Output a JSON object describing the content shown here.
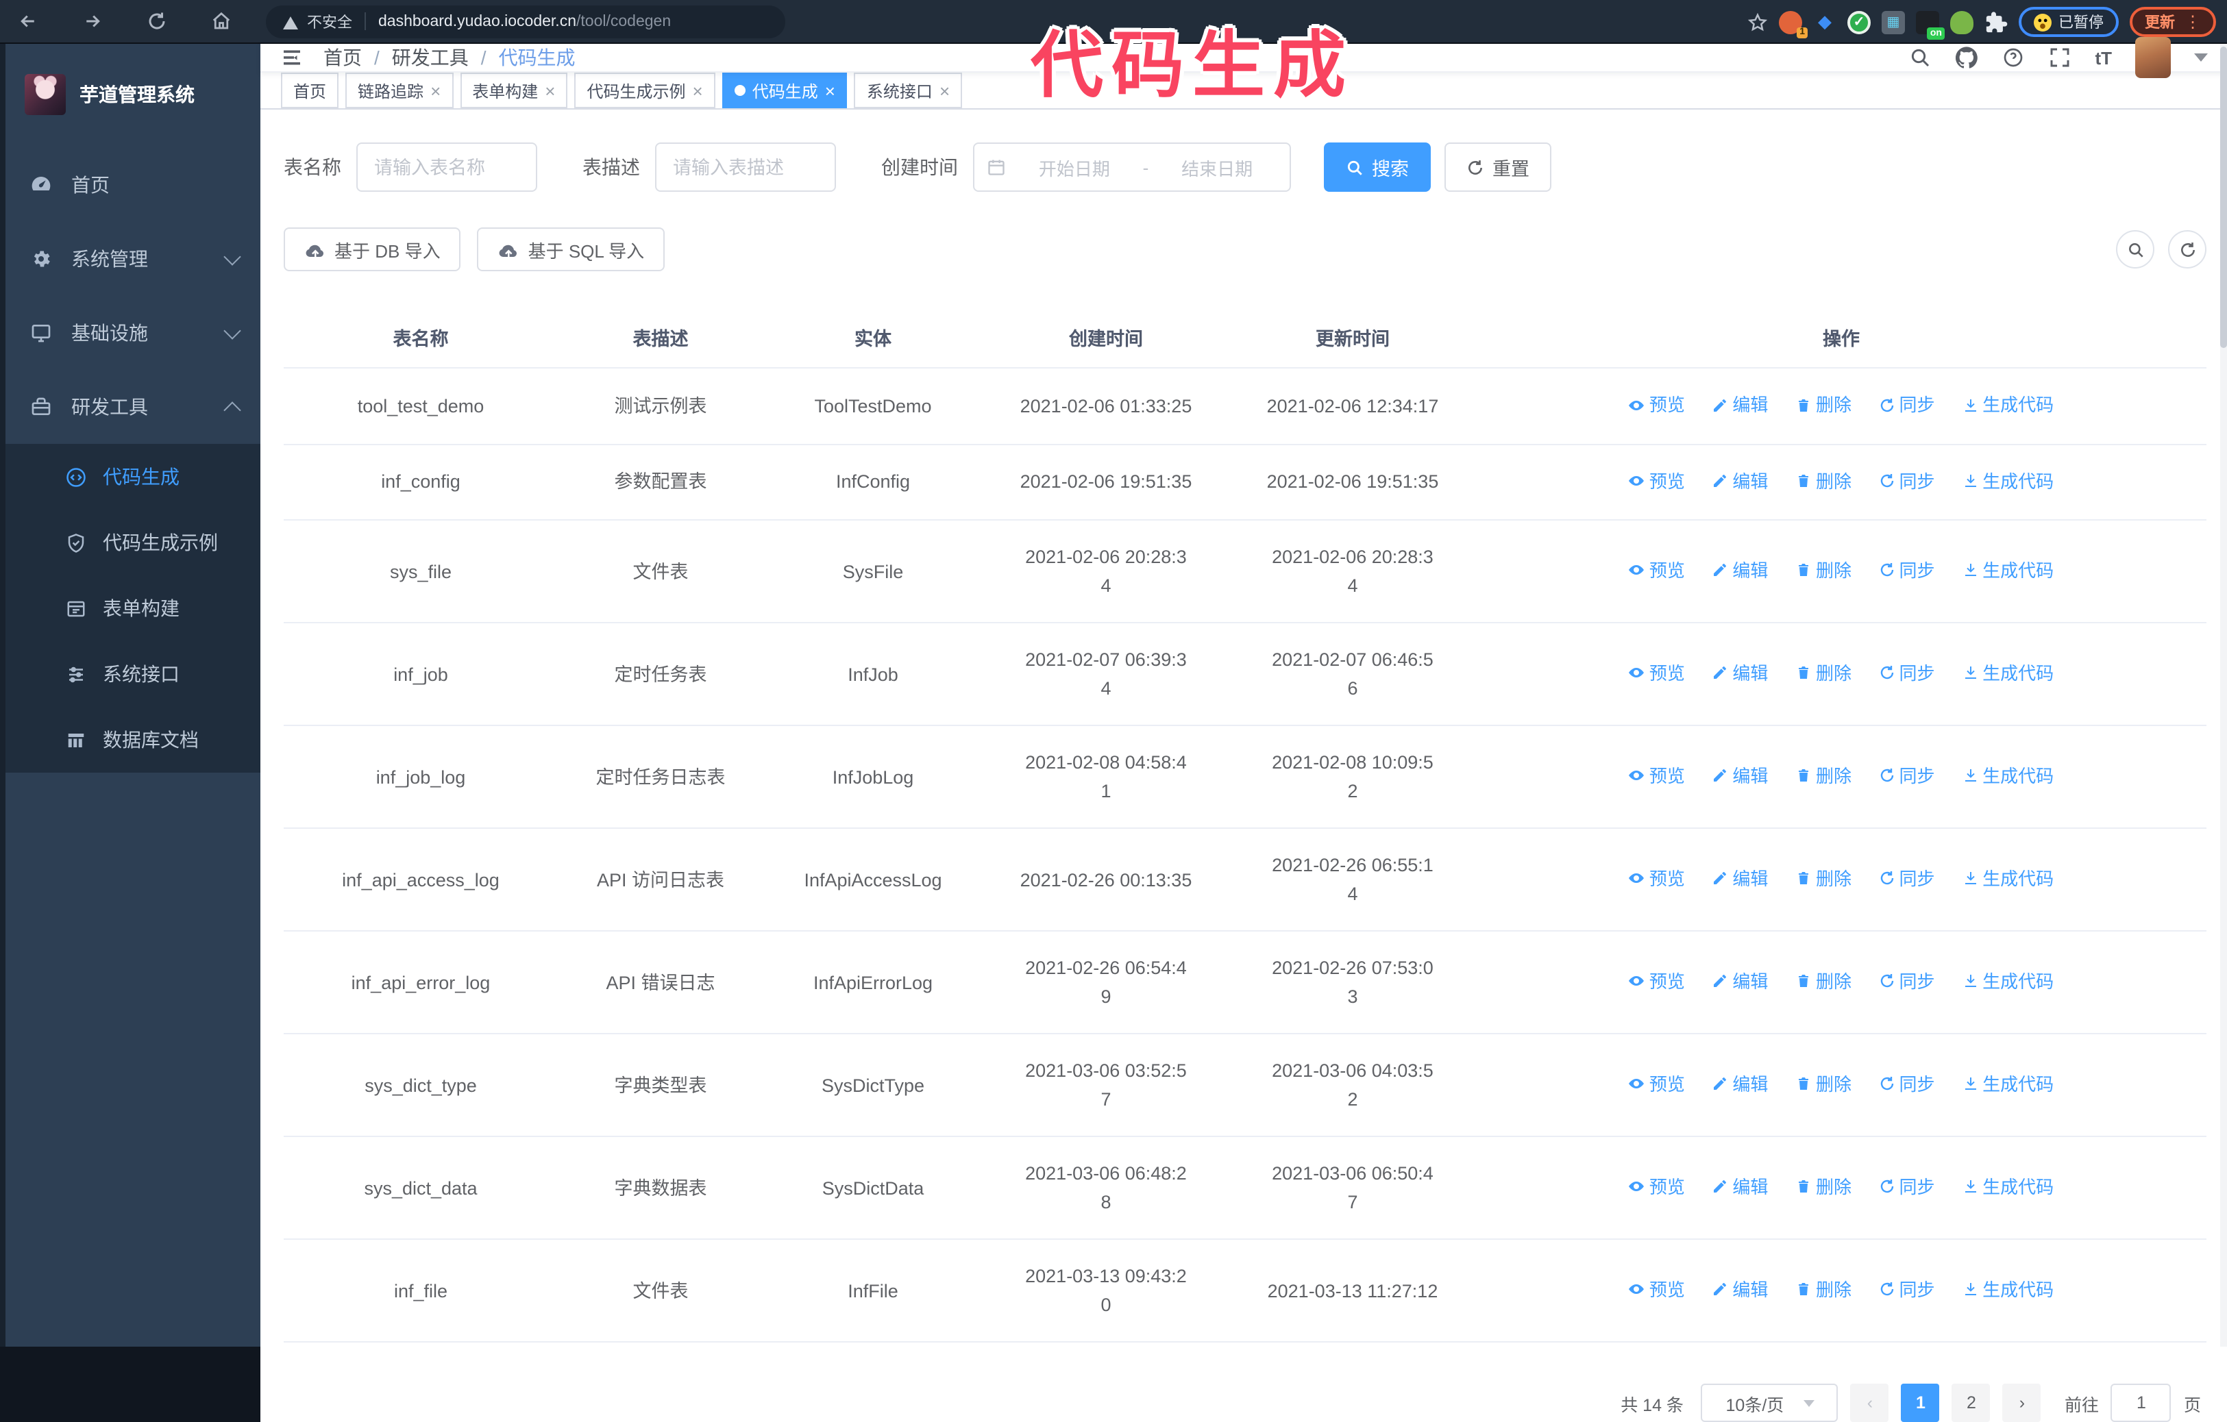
{
  "browser": {
    "security_label": "不安全",
    "url_host": "dashboard.yudao.iocoder.cn",
    "url_path": "/tool/codegen",
    "ext_badge_1": "1",
    "ext_badge_on": "on",
    "paused_badge": "已暂停",
    "update_button": "更新",
    "vdots": "⋮"
  },
  "annotation": {
    "text": "代码生成"
  },
  "sidebar": {
    "title": "芋道管理系统",
    "items": [
      {
        "label": "首页"
      },
      {
        "label": "系统管理"
      },
      {
        "label": "基础设施"
      },
      {
        "label": "研发工具"
      }
    ],
    "subitems": [
      {
        "label": "代码生成"
      },
      {
        "label": "代码生成示例"
      },
      {
        "label": "表单构建"
      },
      {
        "label": "系统接口"
      },
      {
        "label": "数据库文档"
      }
    ]
  },
  "header": {
    "breadcrumb": [
      "首页",
      "研发工具",
      "代码生成"
    ],
    "separator": "/",
    "font_size_icon": "tT"
  },
  "tabs": [
    {
      "label": "首页",
      "closable": false,
      "active": false
    },
    {
      "label": "链路追踪",
      "closable": true,
      "active": false
    },
    {
      "label": "表单构建",
      "closable": true,
      "active": false
    },
    {
      "label": "代码生成示例",
      "closable": true,
      "active": false
    },
    {
      "label": "代码生成",
      "closable": true,
      "active": true
    },
    {
      "label": "系统接口",
      "closable": true,
      "active": false
    }
  ],
  "filters": {
    "name_label": "表名称",
    "name_placeholder": "请输入表名称",
    "desc_label": "表描述",
    "desc_placeholder": "请输入表描述",
    "time_label": "创建时间",
    "start_placeholder": "开始日期",
    "range_separator": "-",
    "end_placeholder": "结束日期",
    "search_label": "搜索",
    "reset_label": "重置"
  },
  "toolbar": {
    "db_import": "基于 DB 导入",
    "sql_import": "基于 SQL 导入"
  },
  "table": {
    "columns": [
      "表名称",
      "表描述",
      "实体",
      "创建时间",
      "更新时间",
      "操作"
    ],
    "actions": [
      "预览",
      "编辑",
      "删除",
      "同步",
      "生成代码"
    ],
    "rows": [
      {
        "name": "tool_test_demo",
        "desc": "测试示例表",
        "entity": "ToolTestDemo",
        "created": "2021-02-06 01:33:25",
        "updated": "2021-02-06 12:34:17"
      },
      {
        "name": "inf_config",
        "desc": "参数配置表",
        "entity": "InfConfig",
        "created": "2021-02-06 19:51:35",
        "updated": "2021-02-06 19:51:35"
      },
      {
        "name": "sys_file",
        "desc": "文件表",
        "entity": "SysFile",
        "created": "2021-02-06 20:28:3\n4",
        "updated": "2021-02-06 20:28:3\n4"
      },
      {
        "name": "inf_job",
        "desc": "定时任务表",
        "entity": "InfJob",
        "created": "2021-02-07 06:39:3\n4",
        "updated": "2021-02-07 06:46:5\n6"
      },
      {
        "name": "inf_job_log",
        "desc": "定时任务日志表",
        "entity": "InfJobLog",
        "created": "2021-02-08 04:58:4\n1",
        "updated": "2021-02-08 10:09:5\n2"
      },
      {
        "name": "inf_api_access_log",
        "desc": "API 访问日志表",
        "entity": "InfApiAccessLog",
        "created": "2021-02-26 00:13:35",
        "updated": "2021-02-26 06:55:1\n4"
      },
      {
        "name": "inf_api_error_log",
        "desc": "API 错误日志",
        "entity": "InfApiErrorLog",
        "created": "2021-02-26 06:54:4\n9",
        "updated": "2021-02-26 07:53:0\n3"
      },
      {
        "name": "sys_dict_type",
        "desc": "字典类型表",
        "entity": "SysDictType",
        "created": "2021-03-06 03:52:5\n7",
        "updated": "2021-03-06 04:03:5\n2"
      },
      {
        "name": "sys_dict_data",
        "desc": "字典数据表",
        "entity": "SysDictData",
        "created": "2021-03-06 06:48:2\n8",
        "updated": "2021-03-06 06:50:4\n7"
      },
      {
        "name": "inf_file",
        "desc": "文件表",
        "entity": "InfFile",
        "created": "2021-03-13 09:43:2\n0",
        "updated": "2021-03-13 11:27:12"
      }
    ]
  },
  "pagination": {
    "total_label": "共 14 条",
    "page_size": "10条/页",
    "prev": "‹",
    "pages": [
      "1",
      "2"
    ],
    "next": "›",
    "goto_label": "前往",
    "goto_value": "1",
    "page_suffix": "页"
  }
}
